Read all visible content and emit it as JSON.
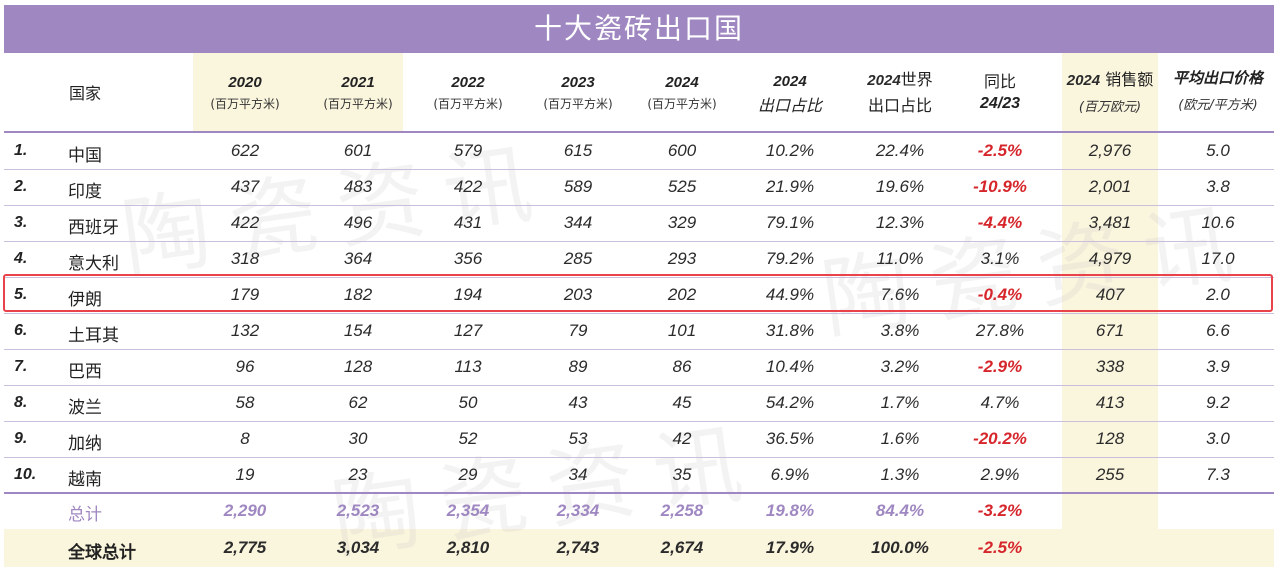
{
  "title": "十大瓷砖出口国",
  "header": {
    "country": "国家",
    "years": [
      "2020",
      "2021",
      "2022",
      "2023",
      "2024"
    ],
    "unit": "(百万平方米)",
    "share_year": "2024",
    "share_label": "出口占比",
    "world_share_year": "2024",
    "world_share_suffix": "世界",
    "world_share_label": "出口占比",
    "yoy_label": "同比",
    "yoy_period": "24/23",
    "sales_year": "2024",
    "sales_label": "销售额",
    "sales_unit": "(百万欧元)",
    "price_label": "平均出口价格",
    "price_unit": "(欧元/平方米)"
  },
  "rows": [
    {
      "rank": "1.",
      "country": "中国",
      "v2020": "622",
      "v2021": "601",
      "v2022": "579",
      "v2023": "615",
      "v2024": "600",
      "share": "10.2%",
      "world": "22.4%",
      "yoy": "-2.5%",
      "sales": "2,976",
      "price": "5.0"
    },
    {
      "rank": "2.",
      "country": "印度",
      "v2020": "437",
      "v2021": "483",
      "v2022": "422",
      "v2023": "589",
      "v2024": "525",
      "share": "21.9%",
      "world": "19.6%",
      "yoy": "-10.9%",
      "sales": "2,001",
      "price": "3.8"
    },
    {
      "rank": "3.",
      "country": "西班牙",
      "v2020": "422",
      "v2021": "496",
      "v2022": "431",
      "v2023": "344",
      "v2024": "329",
      "share": "79.1%",
      "world": "12.3%",
      "yoy": "-4.4%",
      "sales": "3,481",
      "price": "10.6"
    },
    {
      "rank": "4.",
      "country": "意大利",
      "v2020": "318",
      "v2021": "364",
      "v2022": "356",
      "v2023": "285",
      "v2024": "293",
      "share": "79.2%",
      "world": "11.0%",
      "yoy": "3.1%",
      "sales": "4,979",
      "price": "17.0"
    },
    {
      "rank": "5.",
      "country": "伊朗",
      "v2020": "179",
      "v2021": "182",
      "v2022": "194",
      "v2023": "203",
      "v2024": "202",
      "share": "44.9%",
      "world": "7.6%",
      "yoy": "-0.4%",
      "sales": "407",
      "price": "2.0"
    },
    {
      "rank": "6.",
      "country": "土耳其",
      "v2020": "132",
      "v2021": "154",
      "v2022": "127",
      "v2023": "79",
      "v2024": "101",
      "share": "31.8%",
      "world": "3.8%",
      "yoy": "27.8%",
      "sales": "671",
      "price": "6.6"
    },
    {
      "rank": "7.",
      "country": "巴西",
      "v2020": "96",
      "v2021": "128",
      "v2022": "113",
      "v2023": "89",
      "v2024": "86",
      "share": "10.4%",
      "world": "3.2%",
      "yoy": "-2.9%",
      "sales": "338",
      "price": "3.9"
    },
    {
      "rank": "8.",
      "country": "波兰",
      "v2020": "58",
      "v2021": "62",
      "v2022": "50",
      "v2023": "43",
      "v2024": "45",
      "share": "54.2%",
      "world": "1.7%",
      "yoy": "4.7%",
      "sales": "413",
      "price": "9.2"
    },
    {
      "rank": "9.",
      "country": "加纳",
      "v2020": "8",
      "v2021": "30",
      "v2022": "52",
      "v2023": "53",
      "v2024": "42",
      "share": "36.5%",
      "world": "1.6%",
      "yoy": "-20.2%",
      "sales": "128",
      "price": "3.0"
    },
    {
      "rank": "10.",
      "country": "越南",
      "v2020": "19",
      "v2021": "23",
      "v2022": "29",
      "v2023": "34",
      "v2024": "35",
      "share": "6.9%",
      "world": "1.3%",
      "yoy": "2.9%",
      "sales": "255",
      "price": "7.3"
    }
  ],
  "total": {
    "label": "总计",
    "v2020": "2,290",
    "v2021": "2,523",
    "v2022": "2,354",
    "v2023": "2,334",
    "v2024": "2,258",
    "share": "19.8%",
    "world": "84.4%",
    "yoy": "-3.2%"
  },
  "global_total": {
    "label": "全球总计",
    "v2020": "2,775",
    "v2021": "3,034",
    "v2022": "2,810",
    "v2023": "2,743",
    "v2024": "2,674",
    "share": "17.9%",
    "world": "100.0%",
    "yoy": "-2.5%"
  },
  "colors": {
    "title_bg": "#9f87c1",
    "highlight_col": "#faf5dd",
    "negative": "#d6262c",
    "outline": "#e8434b"
  }
}
